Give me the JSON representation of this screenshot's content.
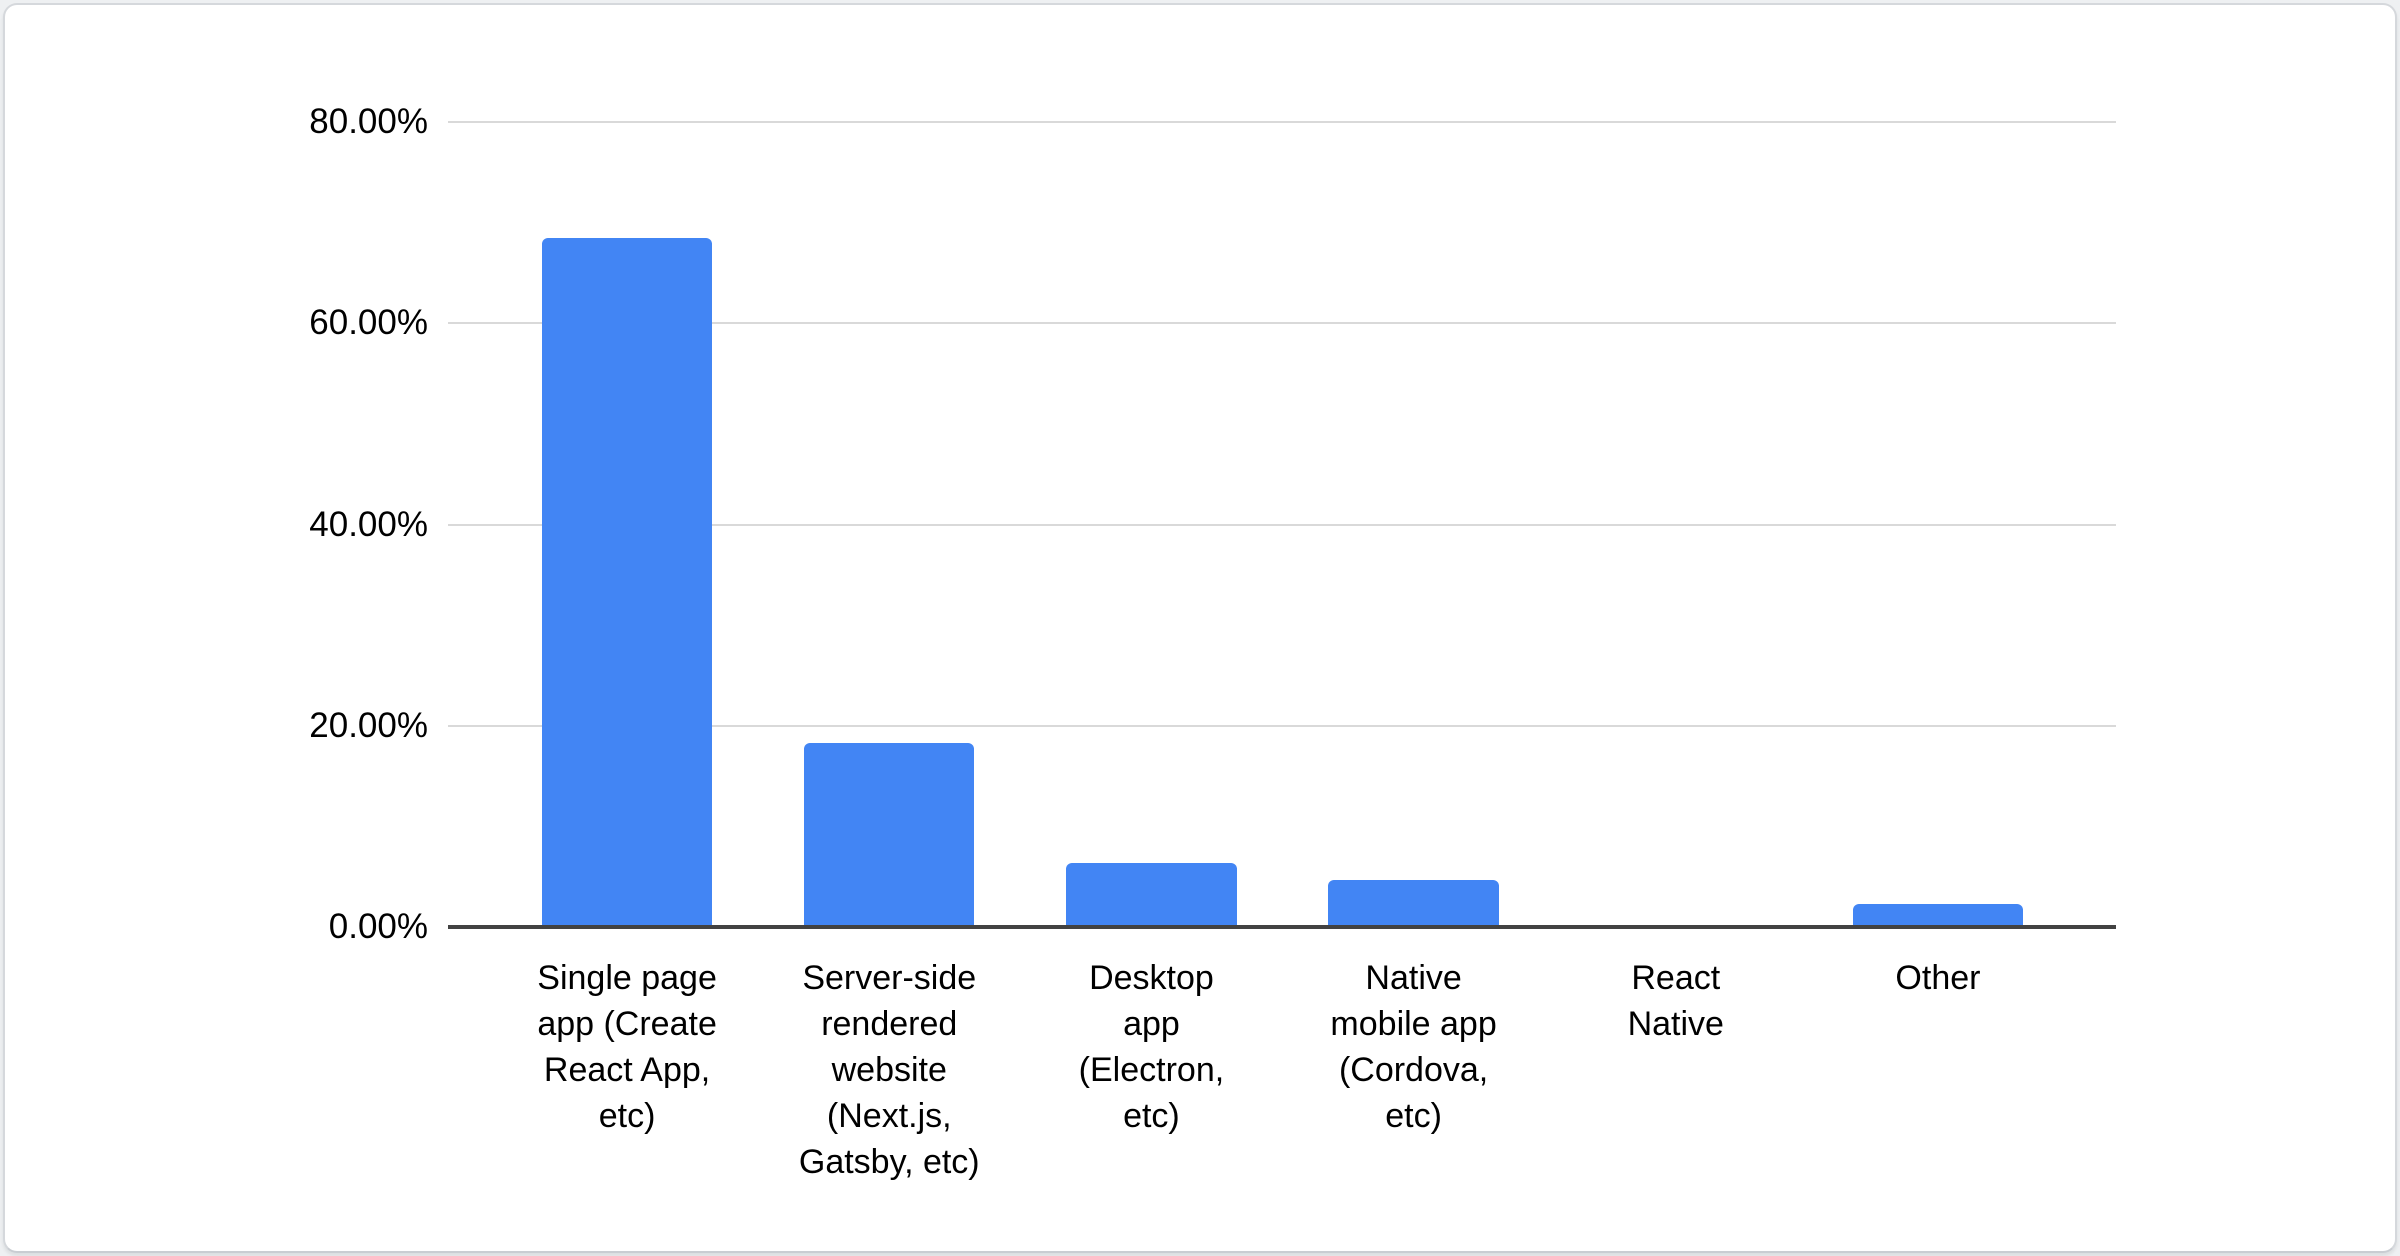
{
  "chart_data": {
    "type": "bar",
    "title": "",
    "xlabel": "",
    "ylabel": "",
    "categories": [
      "Single page app (Create React App, etc)",
      "Server-side rendered website (Next.js, Gatsby, etc)",
      "Desktop app (Electron, etc)",
      "Native mobile app (Cordova, etc)",
      "React Native",
      "Other"
    ],
    "categories_display": [
      "Single page\napp (Create\nReact App,\netc)",
      "Server-side\nrendered\nwebsite\n(Next.js,\nGatsby, etc)",
      "Desktop\napp\n(Electron,\netc)",
      "Native\nmobile app\n(Cordova,\netc)",
      "React\nNative",
      "Other"
    ],
    "values": [
      68.5,
      18.3,
      6.4,
      4.7,
      0,
      2.3
    ],
    "unit": "%",
    "ylim": [
      0,
      80
    ],
    "yticks": [
      "80.00%",
      "60.00%",
      "40.00%",
      "20.00%",
      "0.00%"
    ],
    "grid": true,
    "legend": "none",
    "colors": {
      "bar": "#4285f4",
      "gridline": "#d9d9d9",
      "axis": "#424242",
      "text": "#000000",
      "card_background": "#ffffff",
      "card_border": "#d5d8dc"
    }
  }
}
